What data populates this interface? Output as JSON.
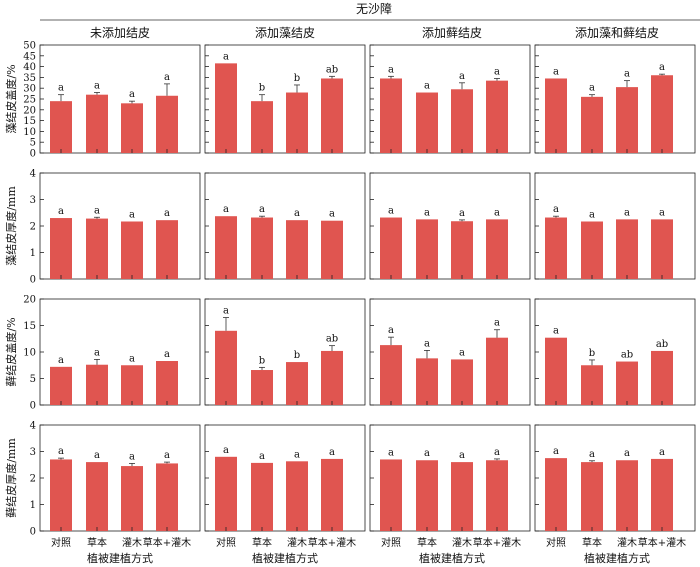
{
  "chart_data": {
    "type": "bar",
    "title": "无沙障",
    "bar_color": "#e05550",
    "columns": [
      "未添加结皮",
      "添加藻结皮",
      "添加藓结皮",
      "添加藻和藓结皮"
    ],
    "categories": [
      "对照",
      "草本",
      "灌木",
      "草本+灌木"
    ],
    "xlabel": "植被建植方式",
    "rows": [
      {
        "ylabel": "藻结皮盖度/%",
        "ylim": [
          0,
          50
        ],
        "yticks": [
          0,
          5,
          10,
          15,
          20,
          25,
          30,
          35,
          40,
          45,
          50
        ],
        "panels": [
          {
            "values": [
              24.0,
              27.0,
              23.0,
              26.5
            ],
            "errors": [
              3.0,
              1.0,
              1.0,
              5.5
            ],
            "letters": [
              "a",
              "a",
              "a",
              "a"
            ]
          },
          {
            "values": [
              41.5,
              24.0,
              28.0,
              34.5
            ],
            "errors": [
              0,
              3.0,
              3.5,
              1.0
            ],
            "letters": [
              "a",
              "b",
              "b",
              "ab"
            ]
          },
          {
            "values": [
              34.5,
              28.0,
              29.5,
              33.5
            ],
            "errors": [
              1.0,
              0,
              3.0,
              1.0
            ],
            "letters": [
              "a",
              "a",
              "a",
              "a"
            ]
          },
          {
            "values": [
              34.5,
              26.0,
              30.5,
              36.0
            ],
            "errors": [
              0,
              1.0,
              3.0,
              0.5
            ],
            "letters": [
              "a",
              "a",
              "a",
              "a"
            ]
          }
        ]
      },
      {
        "ylabel": "藻结皮厚度/mm",
        "ylim": [
          0,
          4
        ],
        "yticks": [
          0,
          1,
          2,
          3,
          4
        ],
        "panels": [
          {
            "values": [
              2.3,
              2.28,
              2.17,
              2.22
            ],
            "errors": [
              0,
              0.05,
              0,
              0
            ],
            "letters": [
              "a",
              "a",
              "a",
              "a"
            ]
          },
          {
            "values": [
              2.37,
              2.32,
              2.22,
              2.2
            ],
            "errors": [
              0,
              0.05,
              0,
              0
            ],
            "letters": [
              "a",
              "a",
              "a",
              "a"
            ]
          },
          {
            "values": [
              2.32,
              2.25,
              2.18,
              2.25
            ],
            "errors": [
              0,
              0,
              0.05,
              0
            ],
            "letters": [
              "a",
              "a",
              "a",
              "a"
            ]
          },
          {
            "values": [
              2.32,
              2.17,
              2.25,
              2.25
            ],
            "errors": [
              0.05,
              0,
              0,
              0
            ],
            "letters": [
              "a",
              "a",
              "a",
              "a"
            ]
          }
        ]
      },
      {
        "ylabel": "藓结皮盖度/%",
        "ylim": [
          0,
          20
        ],
        "yticks": [
          0,
          5,
          10,
          15,
          20
        ],
        "panels": [
          {
            "values": [
              7.2,
              7.6,
              7.5,
              8.3
            ],
            "errors": [
              0,
              1.0,
              0,
              0
            ],
            "letters": [
              "a",
              "a",
              "a",
              "a"
            ]
          },
          {
            "values": [
              14.0,
              6.6,
              8.1,
              10.2
            ],
            "errors": [
              2.5,
              0.5,
              0,
              1.0
            ],
            "letters": [
              "a",
              "b",
              "b",
              "ab"
            ]
          },
          {
            "values": [
              11.3,
              8.8,
              8.6,
              12.7
            ],
            "errors": [
              1.5,
              1.5,
              0,
              1.5
            ],
            "letters": [
              "a",
              "a",
              "a",
              "a"
            ]
          },
          {
            "values": [
              12.7,
              7.5,
              8.2,
              10.2
            ],
            "errors": [
              0,
              1.0,
              0,
              0
            ],
            "letters": [
              "a",
              "b",
              "ab",
              "ab"
            ]
          }
        ]
      },
      {
        "ylabel": "藓结皮厚度/mm",
        "ylim": [
          0,
          4
        ],
        "yticks": [
          0,
          1,
          2,
          3,
          4
        ],
        "panels": [
          {
            "values": [
              2.7,
              2.6,
              2.45,
              2.55
            ],
            "errors": [
              0.05,
              0,
              0.1,
              0.05
            ],
            "letters": [
              "a",
              "a",
              "a",
              "a"
            ]
          },
          {
            "values": [
              2.8,
              2.57,
              2.63,
              2.72
            ],
            "errors": [
              0,
              0,
              0,
              0
            ],
            "letters": [
              "a",
              "a",
              "a",
              "a"
            ]
          },
          {
            "values": [
              2.7,
              2.67,
              2.6,
              2.67
            ],
            "errors": [
              0,
              0,
              0,
              0.05
            ],
            "letters": [
              "a",
              "a",
              "a",
              "a"
            ]
          },
          {
            "values": [
              2.75,
              2.6,
              2.67,
              2.72
            ],
            "errors": [
              0,
              0.05,
              0,
              0
            ],
            "letters": [
              "a",
              "a",
              "a",
              "a"
            ]
          }
        ]
      }
    ]
  }
}
